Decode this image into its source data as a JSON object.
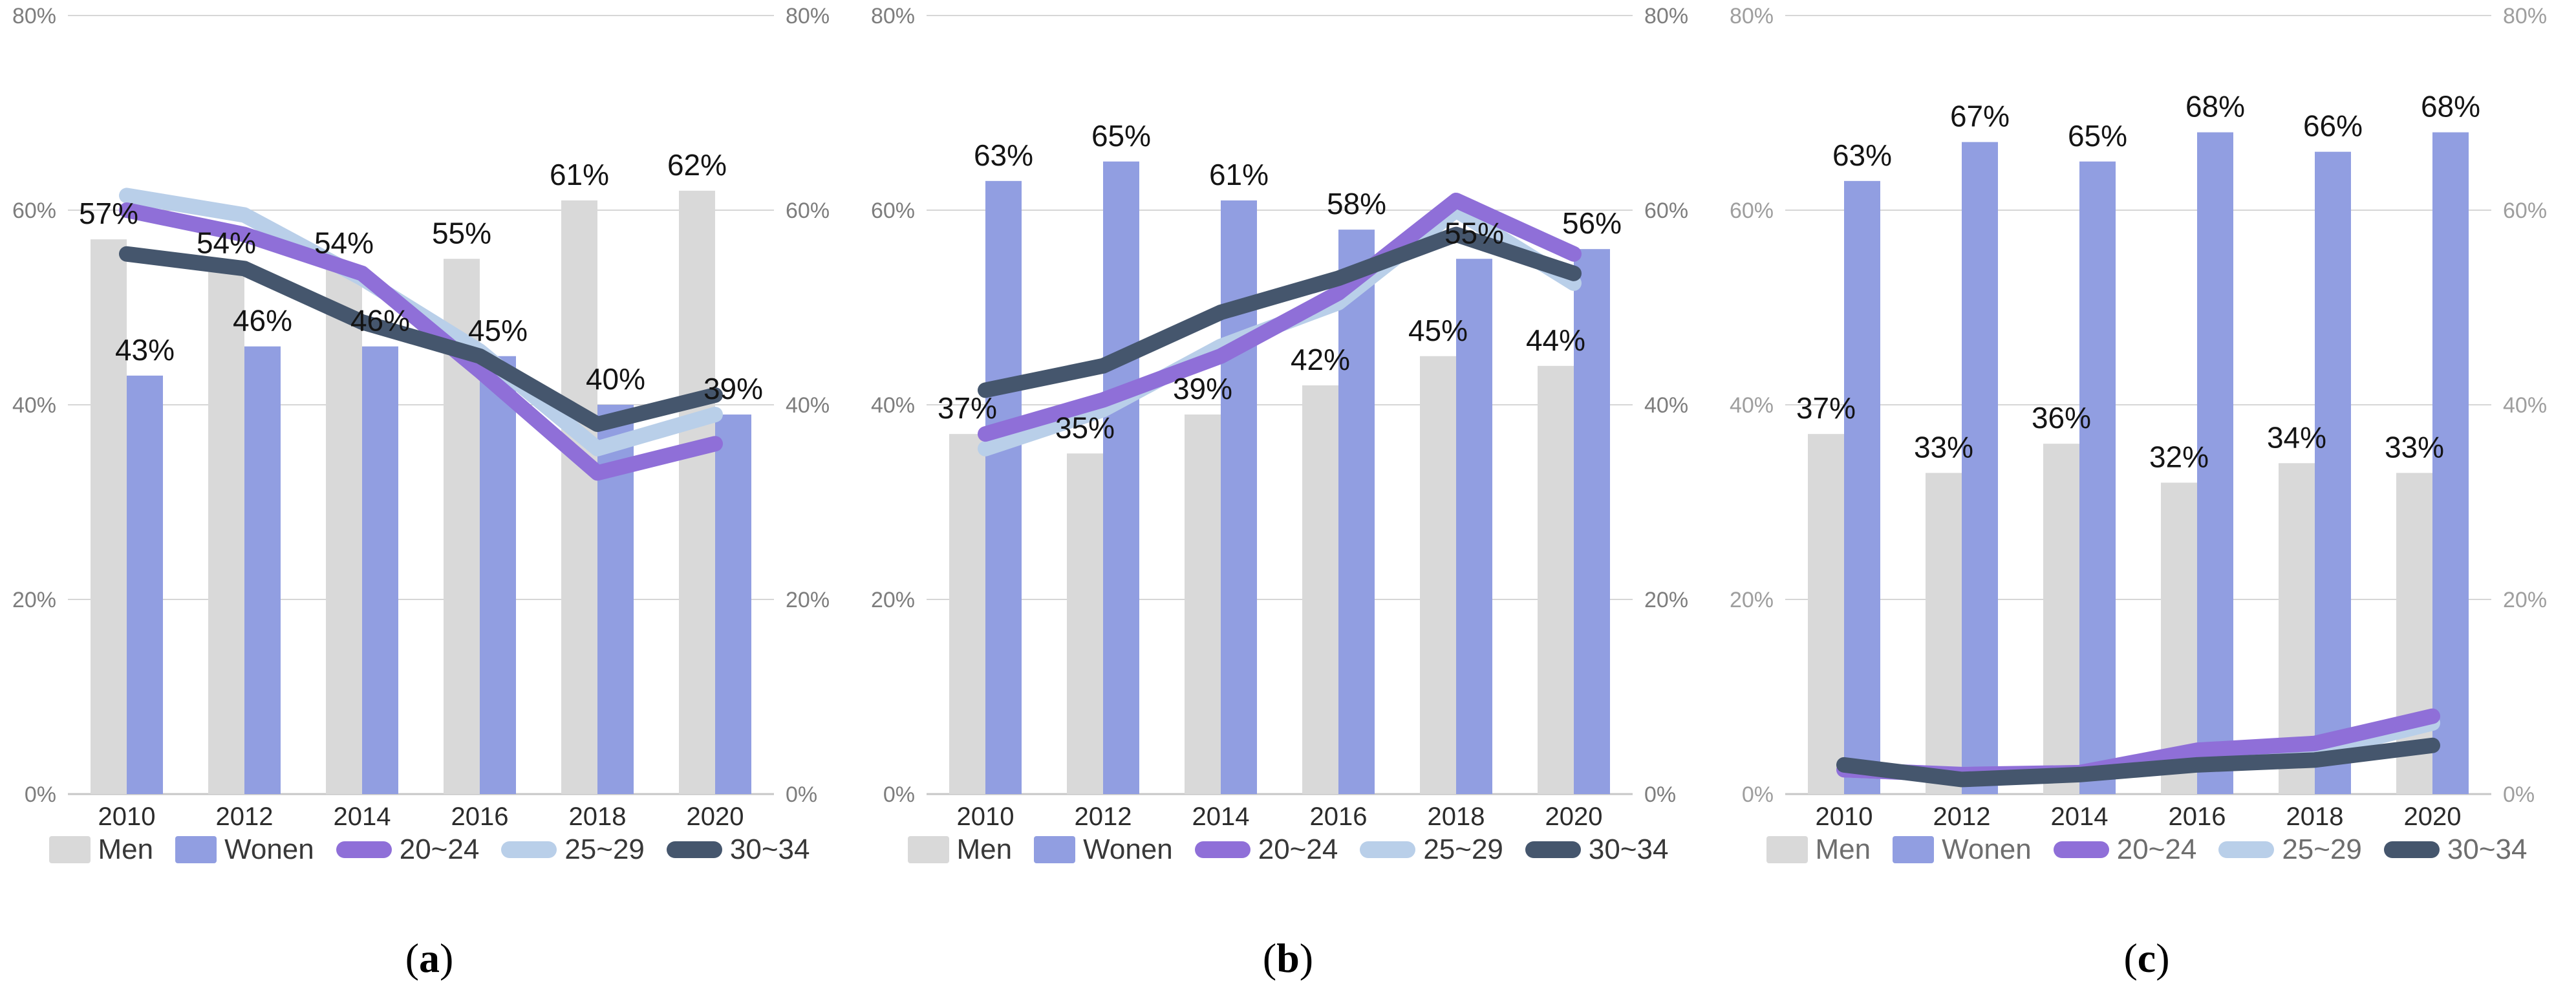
{
  "figure": {
    "background": "#ffffff"
  },
  "axis": {
    "ticks": [
      "0%",
      "20%",
      "40%",
      "60%",
      "80%"
    ],
    "tick_values": [
      0,
      20,
      40,
      60,
      80
    ],
    "ylim": [
      0,
      80
    ],
    "grid": true,
    "gridline_color": "#d6d6d6",
    "baseline_color": "#c7c7c7"
  },
  "legend_order": [
    "Men",
    "Wonen",
    "20~24",
    "25~29",
    "30~34"
  ],
  "line_draw_order": [
    1,
    0,
    2
  ],
  "chart_data": [
    {
      "id": "a",
      "type": "bar",
      "caption_open": "(",
      "caption_letter": "a",
      "caption_close": ")",
      "categories": [
        "2010",
        "2012",
        "2014",
        "2016",
        "2018",
        "2020"
      ],
      "axis_color": "#7d7d7d",
      "year_color": "#2b2b2b",
      "label_color": "#141414",
      "legend_color": "#383838",
      "bar_series": [
        {
          "name": "Men",
          "color": "#d9d9d9",
          "values": [
            57,
            54,
            54,
            55,
            61,
            62
          ],
          "labels": [
            "57%",
            "54%",
            "54%",
            "55%",
            "61%",
            "62%"
          ]
        },
        {
          "name": "Wonen",
          "color": "#919ee1",
          "values": [
            43,
            46,
            46,
            45,
            40,
            39
          ],
          "labels": [
            "43%",
            "46%",
            "46%",
            "45%",
            "40%",
            "39%"
          ]
        }
      ],
      "line_series": [
        {
          "name": "20~24",
          "color": "#8f6fd8",
          "values": [
            60,
            57.5,
            53.5,
            43.5,
            33,
            36
          ]
        },
        {
          "name": "25~29",
          "color": "#b9cfe9",
          "values": [
            61.5,
            59.5,
            53,
            45.5,
            35.5,
            39
          ]
        },
        {
          "name": "30~34",
          "color": "#45566d",
          "values": [
            55.5,
            54,
            48.5,
            45,
            38,
            41
          ]
        }
      ]
    },
    {
      "id": "b",
      "type": "bar",
      "caption_open": "(",
      "caption_letter": "b",
      "caption_close": ")",
      "categories": [
        "2010",
        "2012",
        "2014",
        "2016",
        "2018",
        "2020"
      ],
      "axis_color": "#7d7d7d",
      "year_color": "#2b2b2b",
      "label_color": "#141414",
      "legend_color": "#383838",
      "bar_series": [
        {
          "name": "Men",
          "color": "#d9d9d9",
          "values": [
            37,
            35,
            39,
            42,
            45,
            44
          ],
          "labels": [
            "37%",
            "35%",
            "39%",
            "42%",
            "45%",
            "44%"
          ]
        },
        {
          "name": "Wonen",
          "color": "#919ee1",
          "values": [
            63,
            65,
            61,
            58,
            55,
            56
          ],
          "labels": [
            "63%",
            "65%",
            "61%",
            "58%",
            "55%",
            "56%"
          ]
        }
      ],
      "line_series": [
        {
          "name": "20~24",
          "color": "#8f6fd8",
          "values": [
            37,
            40.5,
            45,
            51.5,
            61,
            55.5
          ]
        },
        {
          "name": "25~29",
          "color": "#b9cfe9",
          "values": [
            35.5,
            39.5,
            46,
            50.5,
            60,
            52.5
          ]
        },
        {
          "name": "30~34",
          "color": "#45566d",
          "values": [
            41.5,
            44,
            49.5,
            53,
            57.5,
            53.5
          ]
        }
      ]
    },
    {
      "id": "c",
      "type": "bar",
      "caption_open": "(",
      "caption_letter": "c",
      "caption_close": ")",
      "categories": [
        "2010",
        "2012",
        "2014",
        "2016",
        "2018",
        "2020"
      ],
      "axis_color": "#9e9e9e",
      "year_color": "#2b2b2b",
      "label_color": "#141414",
      "legend_color": "#6e6e6e",
      "bar_series": [
        {
          "name": "Men",
          "color": "#d9d9d9",
          "values": [
            37,
            33,
            36,
            32,
            34,
            33
          ],
          "labels": [
            "37%",
            "33%",
            "36%",
            "32%",
            "34%",
            "33%"
          ]
        },
        {
          "name": "Wonen",
          "color": "#919ee1",
          "values": [
            63,
            67,
            65,
            68,
            66,
            68
          ],
          "labels": [
            "63%",
            "67%",
            "65%",
            "68%",
            "66%",
            "68%"
          ]
        }
      ],
      "line_series": [
        {
          "name": "20~24",
          "color": "#8f6fd8",
          "values": [
            2.5,
            2,
            2.2,
            4.5,
            5.2,
            8
          ]
        },
        {
          "name": "25~29",
          "color": "#b9cfe9",
          "values": [
            2.5,
            2,
            2.1,
            3.8,
            4.3,
            7.3
          ]
        },
        {
          "name": "30~34",
          "color": "#45566d",
          "values": [
            3,
            1.5,
            2,
            3,
            3.5,
            5
          ]
        }
      ]
    }
  ]
}
